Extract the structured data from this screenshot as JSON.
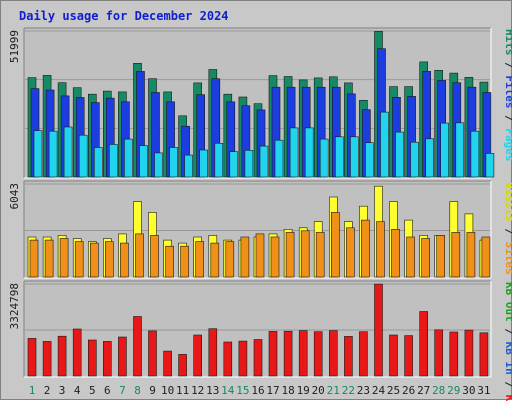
{
  "title": "Daily usage for December 2024",
  "chart_data": [
    {
      "type": "bar",
      "panel": "pages-files-hits",
      "y_axis_label": "51999",
      "ylim": [
        0,
        51999
      ],
      "categories": [
        "1",
        "2",
        "3",
        "4",
        "5",
        "6",
        "7",
        "8",
        "9",
        "10",
        "11",
        "12",
        "13",
        "14",
        "15",
        "16",
        "17",
        "18",
        "19",
        "20",
        "21",
        "22",
        "23",
        "24",
        "25",
        "26",
        "27",
        "28",
        "29",
        "30",
        "31"
      ],
      "series": [
        {
          "name": "Hits",
          "color": "#158a64",
          "values": [
            35400,
            36200,
            33600,
            31800,
            29500,
            30600,
            30300,
            40500,
            35000,
            30300,
            21800,
            33500,
            38300,
            29500,
            28500,
            26100,
            36100,
            35800,
            34600,
            35300,
            35700,
            33500,
            27300,
            51900,
            32200,
            32200,
            41000,
            38000,
            37000,
            35500,
            33800
          ]
        },
        {
          "name": "Files",
          "color": "#1c3ee0",
          "values": [
            31500,
            31000,
            28900,
            28300,
            26500,
            28100,
            26800,
            37600,
            30100,
            26800,
            18100,
            29300,
            35000,
            26800,
            25400,
            23900,
            32000,
            32000,
            32000,
            32000,
            32000,
            29600,
            24000,
            45700,
            28400,
            28700,
            37600,
            34400,
            33600,
            32000,
            30100
          ]
        },
        {
          "name": "Pages",
          "color": "#20d4ee",
          "values": [
            16500,
            16300,
            17800,
            14900,
            10500,
            11600,
            13500,
            11200,
            8600,
            10500,
            7800,
            9600,
            12000,
            9000,
            9500,
            11000,
            13100,
            17500,
            17500,
            13500,
            14300,
            14300,
            12200,
            23100,
            16000,
            12400,
            13600,
            19200,
            19300,
            16300,
            8400
          ]
        }
      ]
    },
    {
      "type": "bar",
      "panel": "visits-sites",
      "y_axis_label": "6043",
      "ylim": [
        0,
        6043
      ],
      "categories": [
        "1",
        "2",
        "3",
        "4",
        "5",
        "6",
        "7",
        "8",
        "9",
        "10",
        "11",
        "12",
        "13",
        "14",
        "15",
        "16",
        "17",
        "18",
        "19",
        "20",
        "21",
        "22",
        "23",
        "24",
        "25",
        "26",
        "27",
        "28",
        "29",
        "30",
        "31"
      ],
      "series": [
        {
          "name": "Visits",
          "color": "#ffff30",
          "values": [
            2600,
            2600,
            2700,
            2500,
            2300,
            2500,
            2800,
            4900,
            4200,
            2400,
            2200,
            2600,
            2700,
            2400,
            2400,
            2600,
            2800,
            3100,
            3200,
            3600,
            5200,
            3600,
            4600,
            5900,
            4900,
            3700,
            2700,
            2700,
            4900,
            4100,
            2400
          ]
        },
        {
          "name": "Sites",
          "color": "#f09018",
          "values": [
            2400,
            2400,
            2500,
            2300,
            2200,
            2300,
            2200,
            2800,
            2700,
            2000,
            2000,
            2300,
            2200,
            2300,
            2600,
            2800,
            2600,
            2900,
            3000,
            2900,
            4200,
            3200,
            3700,
            3600,
            3100,
            2600,
            2500,
            2700,
            2900,
            2900,
            2600
          ]
        }
      ]
    },
    {
      "type": "bar",
      "panel": "kbytes",
      "y_axis_label": "3324798",
      "ylim": [
        0,
        3324798
      ],
      "categories": [
        "1",
        "2",
        "3",
        "4",
        "5",
        "6",
        "7",
        "8",
        "9",
        "10",
        "11",
        "12",
        "13",
        "14",
        "15",
        "16",
        "17",
        "18",
        "19",
        "20",
        "21",
        "22",
        "23",
        "24",
        "25",
        "26",
        "27",
        "28",
        "29",
        "30",
        "31"
      ],
      "series": [
        {
          "name": "KB F",
          "color": "#e81818",
          "values": [
            1360000,
            1250000,
            1440000,
            1700000,
            1300000,
            1250000,
            1410000,
            2150000,
            1630000,
            900000,
            780000,
            1480000,
            1710000,
            1230000,
            1260000,
            1320000,
            1610000,
            1620000,
            1640000,
            1600000,
            1640000,
            1430000,
            1600000,
            3320000,
            1480000,
            1460000,
            2330000,
            1670000,
            1590000,
            1660000,
            1560000
          ]
        }
      ]
    }
  ],
  "legends": [
    {
      "panel": 0,
      "entries": [
        {
          "text": "Pages",
          "color": "#20d4ee"
        },
        {
          "text": " / ",
          "color": "#202020"
        },
        {
          "text": "Files",
          "color": "#1c3ee0"
        },
        {
          "text": " / ",
          "color": "#202020"
        },
        {
          "text": "Hits",
          "color": "#158a64"
        }
      ]
    },
    {
      "panel": 1,
      "entries": [
        {
          "text": "Sites",
          "color": "#f09018"
        },
        {
          "text": " / ",
          "color": "#202020"
        },
        {
          "text": "Visits",
          "color": "#d8d800"
        }
      ]
    },
    {
      "panel": 2,
      "entries": [
        {
          "text": "KB F",
          "color": "#e81818"
        },
        {
          "text": " / ",
          "color": "#202020"
        },
        {
          "text": "KB In",
          "color": "#2060d0"
        },
        {
          "text": " / ",
          "color": "#202020"
        },
        {
          "text": "KB Out",
          "color": "#20a020"
        }
      ]
    }
  ],
  "x_label_colors": {
    "weekday": "#202020",
    "weekend": "#158a64"
  },
  "weekend_days": [
    "1",
    "7",
    "8",
    "14",
    "15",
    "21",
    "22",
    "28",
    "29"
  ]
}
